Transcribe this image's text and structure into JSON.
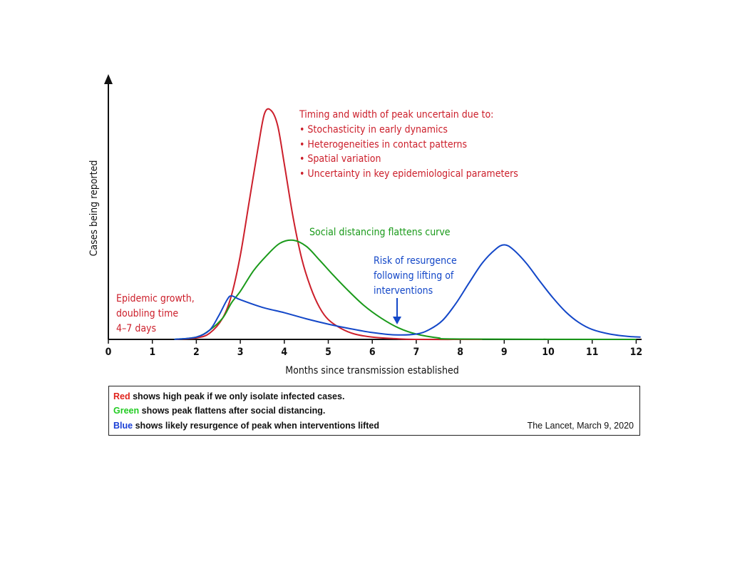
{
  "chart_data": {
    "type": "line",
    "xlabel": "Months since transmission established",
    "ylabel": "Cases being reported",
    "xlim": [
      0,
      12
    ],
    "x_ticks": [
      "0",
      "1",
      "2",
      "3",
      "4",
      "5",
      "6",
      "7",
      "8",
      "9",
      "10",
      "11",
      "12"
    ],
    "grid": false,
    "series": [
      {
        "color": "#cc1f2b",
        "points": [
          [
            1.5,
            0
          ],
          [
            2.0,
            2
          ],
          [
            2.3,
            8
          ],
          [
            2.6,
            28
          ],
          [
            2.8,
            58
          ],
          [
            3.0,
            110
          ],
          [
            3.2,
            180
          ],
          [
            3.4,
            250
          ],
          [
            3.55,
            296
          ],
          [
            3.7,
            300
          ],
          [
            3.85,
            280
          ],
          [
            4.0,
            230
          ],
          [
            4.2,
            160
          ],
          [
            4.4,
            105
          ],
          [
            4.6,
            68
          ],
          [
            4.8,
            42
          ],
          [
            5.0,
            26
          ],
          [
            5.3,
            14
          ],
          [
            5.6,
            7
          ],
          [
            6.0,
            3
          ],
          [
            6.5,
            1
          ],
          [
            7.0,
            0
          ],
          [
            8.5,
            0
          ]
        ]
      },
      {
        "color": "#1a9a1a",
        "points": [
          [
            1.5,
            0
          ],
          [
            2.0,
            3
          ],
          [
            2.3,
            12
          ],
          [
            2.6,
            28
          ],
          [
            2.8,
            48
          ],
          [
            3.0,
            63
          ],
          [
            3.3,
            90
          ],
          [
            3.6,
            110
          ],
          [
            3.9,
            126
          ],
          [
            4.2,
            130
          ],
          [
            4.5,
            122
          ],
          [
            4.8,
            104
          ],
          [
            5.1,
            85
          ],
          [
            5.4,
            67
          ],
          [
            5.8,
            45
          ],
          [
            6.2,
            28
          ],
          [
            6.6,
            15
          ],
          [
            7.0,
            7
          ],
          [
            7.5,
            2
          ],
          [
            8.0,
            0.5
          ],
          [
            12.0,
            0
          ]
        ]
      },
      {
        "color": "#1347c8",
        "points": [
          [
            1.5,
            0
          ],
          [
            2.0,
            3
          ],
          [
            2.3,
            12
          ],
          [
            2.5,
            30
          ],
          [
            2.7,
            52
          ],
          [
            2.8,
            57
          ],
          [
            3.0,
            52
          ],
          [
            3.5,
            42
          ],
          [
            4.0,
            35
          ],
          [
            4.5,
            27
          ],
          [
            5.0,
            20
          ],
          [
            5.5,
            14
          ],
          [
            6.0,
            9
          ],
          [
            6.5,
            6
          ],
          [
            7.0,
            7
          ],
          [
            7.3,
            13
          ],
          [
            7.6,
            25
          ],
          [
            7.9,
            47
          ],
          [
            8.2,
            74
          ],
          [
            8.5,
            100
          ],
          [
            8.8,
            118
          ],
          [
            9.0,
            124
          ],
          [
            9.2,
            118
          ],
          [
            9.5,
            100
          ],
          [
            9.8,
            77
          ],
          [
            10.1,
            55
          ],
          [
            10.4,
            36
          ],
          [
            10.7,
            22
          ],
          [
            11.0,
            13
          ],
          [
            11.4,
            7
          ],
          [
            11.8,
            4
          ],
          [
            12.1,
            3
          ]
        ]
      }
    ],
    "annotations": {
      "peak_title": "Timing and width of peak uncertain due to:",
      "peak_bullets": [
        "• Stochasticity in early dynamics",
        "• Heterogeneities in contact patterns",
        "• Spatial variation",
        "• Uncertainty in key epidemiological parameters"
      ],
      "flatten": "Social distancing flattens curve",
      "resurgence": [
        "Risk of resurgence",
        "following lifting of",
        "interventions"
      ],
      "growth": [
        "Epidemic growth,",
        "doubling time",
        "4–7 days"
      ]
    }
  },
  "legend": {
    "red_word": "Red",
    "red_text": " shows high peak if we only isolate infected cases.",
    "green_word": "Green",
    "green_text": " shows peak flattens after social distancing.",
    "blue_word": "Blue",
    "blue_text": " shows likely resurgence of peak when interventions lifted",
    "source": "The Lancet, March 9, 2020"
  },
  "colors": {
    "red": "#cc1f2b",
    "green": "#1a9a1a",
    "blue": "#1347c8",
    "legend_red": "#e0231c",
    "legend_green": "#22cc22",
    "legend_blue": "#1a3fd6"
  }
}
